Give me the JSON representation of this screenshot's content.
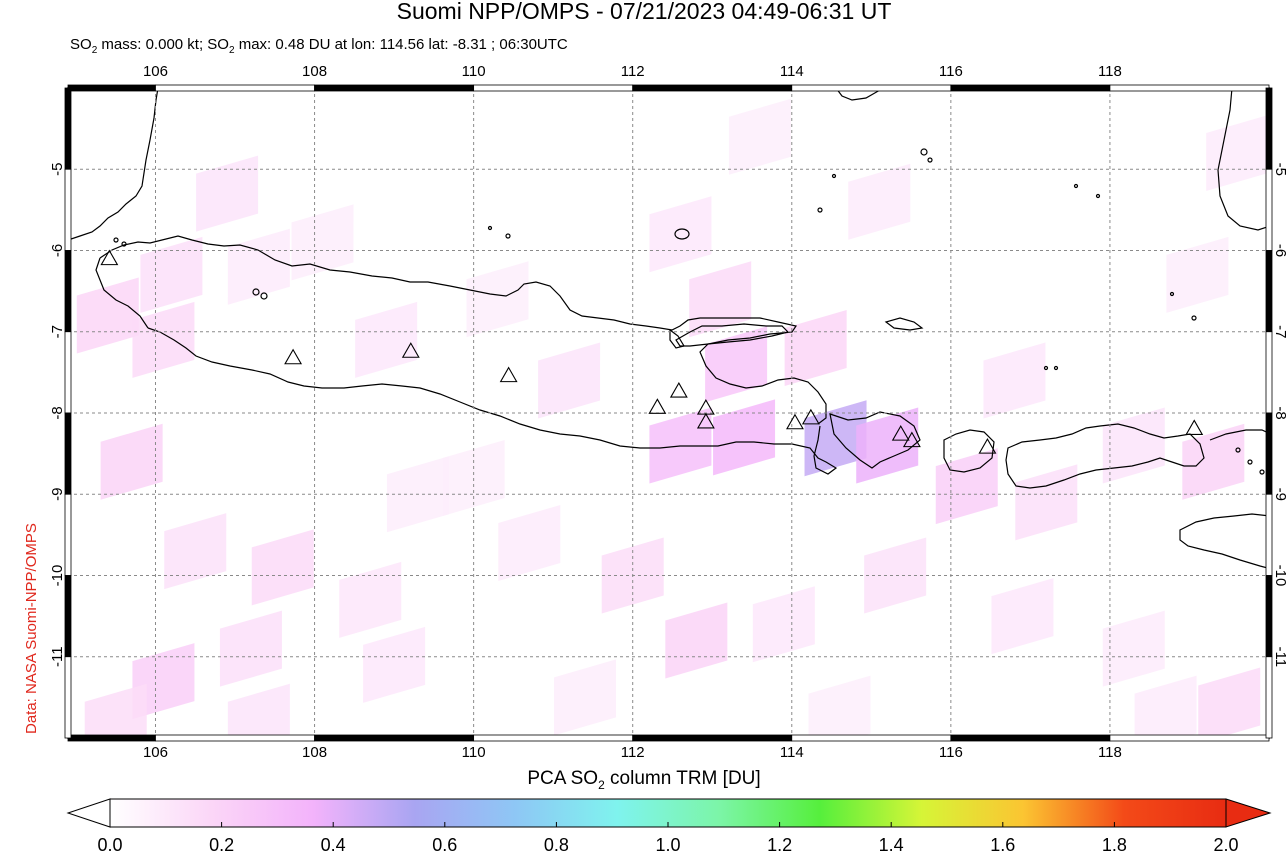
{
  "title": "Suomi NPP/OMPS - 07/21/2023 04:49-06:31 UT",
  "subtitle": {
    "part1": "SO",
    "sub1": "2",
    "part2": " mass: 0.000 kt; SO",
    "sub2": "2",
    "part3": " max: 0.48 DU at lon: 114.56 lat: -8.31 ; 06:30UTC"
  },
  "credit": "Data: NASA Suomi-NPP/OMPS",
  "map": {
    "lon_range": [
      104.9,
      120.0
    ],
    "lat_range": [
      -12.0,
      -4.0
    ],
    "lon_ticks": [
      106,
      108,
      110,
      112,
      114,
      116,
      118
    ],
    "lon_tick_labels": [
      "106",
      "108",
      "110",
      "112",
      "114",
      "116",
      "118"
    ],
    "lat_ticks": [
      -5,
      -6,
      -7,
      -8,
      -9,
      -10,
      -11
    ],
    "lat_tick_labels": [
      "-5",
      "-6",
      "-7",
      "-8",
      "-9",
      "-10",
      "-11"
    ],
    "gridlines": true,
    "volcano_marker": "triangle-icon",
    "volcanoes": [
      {
        "lon": 105.42,
        "lat": -6.1
      },
      {
        "lon": 107.73,
        "lat": -7.32
      },
      {
        "lon": 109.21,
        "lat": -7.24
      },
      {
        "lon": 110.44,
        "lat": -7.54
      },
      {
        "lon": 112.31,
        "lat": -7.93
      },
      {
        "lon": 112.58,
        "lat": -7.73
      },
      {
        "lon": 112.92,
        "lat": -7.94
      },
      {
        "lon": 112.92,
        "lat": -8.11
      },
      {
        "lon": 114.04,
        "lat": -8.12
      },
      {
        "lon": 114.24,
        "lat": -8.06
      },
      {
        "lon": 115.37,
        "lat": -8.26
      },
      {
        "lon": 115.51,
        "lat": -8.34
      },
      {
        "lon": 116.46,
        "lat": -8.42
      },
      {
        "lon": 119.06,
        "lat": -8.19
      }
    ],
    "so2_cells": [
      {
        "lon": 106.2,
        "lat": -6.3,
        "v": 0.14
      },
      {
        "lon": 107.3,
        "lat": -6.2,
        "v": 0.09
      },
      {
        "lon": 105.4,
        "lat": -6.8,
        "v": 0.18
      },
      {
        "lon": 106.1,
        "lat": -7.1,
        "v": 0.16
      },
      {
        "lon": 106.9,
        "lat": -5.3,
        "v": 0.12
      },
      {
        "lon": 108.1,
        "lat": -5.9,
        "v": 0.08
      },
      {
        "lon": 108.9,
        "lat": -7.1,
        "v": 0.1
      },
      {
        "lon": 110.3,
        "lat": -6.6,
        "v": 0.07
      },
      {
        "lon": 111.2,
        "lat": -7.6,
        "v": 0.12
      },
      {
        "lon": 112.6,
        "lat": -5.8,
        "v": 0.1
      },
      {
        "lon": 113.1,
        "lat": -6.6,
        "v": 0.16
      },
      {
        "lon": 113.3,
        "lat": -7.4,
        "v": 0.26
      },
      {
        "lon": 113.4,
        "lat": -8.3,
        "v": 0.34
      },
      {
        "lon": 112.6,
        "lat": -8.4,
        "v": 0.3
      },
      {
        "lon": 114.55,
        "lat": -8.31,
        "v": 0.48
      },
      {
        "lon": 115.2,
        "lat": -8.4,
        "v": 0.38
      },
      {
        "lon": 114.3,
        "lat": -7.2,
        "v": 0.18
      },
      {
        "lon": 115.1,
        "lat": -5.4,
        "v": 0.09
      },
      {
        "lon": 116.2,
        "lat": -8.9,
        "v": 0.22
      },
      {
        "lon": 117.2,
        "lat": -9.1,
        "v": 0.14
      },
      {
        "lon": 118.3,
        "lat": -8.4,
        "v": 0.12
      },
      {
        "lon": 119.3,
        "lat": -8.6,
        "v": 0.2
      },
      {
        "lon": 119.1,
        "lat": -6.3,
        "v": 0.08
      },
      {
        "lon": 105.7,
        "lat": -8.6,
        "v": 0.2
      },
      {
        "lon": 106.5,
        "lat": -9.7,
        "v": 0.13
      },
      {
        "lon": 107.6,
        "lat": -9.9,
        "v": 0.16
      },
      {
        "lon": 108.7,
        "lat": -10.3,
        "v": 0.11
      },
      {
        "lon": 107.2,
        "lat": -10.9,
        "v": 0.14
      },
      {
        "lon": 106.1,
        "lat": -11.3,
        "v": 0.22
      },
      {
        "lon": 105.5,
        "lat": -11.8,
        "v": 0.15
      },
      {
        "lon": 107.3,
        "lat": -11.8,
        "v": 0.12
      },
      {
        "lon": 109.0,
        "lat": -11.1,
        "v": 0.1
      },
      {
        "lon": 110.7,
        "lat": -9.6,
        "v": 0.09
      },
      {
        "lon": 112.0,
        "lat": -10.0,
        "v": 0.15
      },
      {
        "lon": 112.8,
        "lat": -10.8,
        "v": 0.2
      },
      {
        "lon": 113.9,
        "lat": -10.6,
        "v": 0.1
      },
      {
        "lon": 115.3,
        "lat": -10.0,
        "v": 0.13
      },
      {
        "lon": 116.9,
        "lat": -10.5,
        "v": 0.1
      },
      {
        "lon": 118.3,
        "lat": -10.9,
        "v": 0.09
      },
      {
        "lon": 119.5,
        "lat": -11.6,
        "v": 0.16
      },
      {
        "lon": 118.7,
        "lat": -11.7,
        "v": 0.09
      },
      {
        "lon": 110.0,
        "lat": -8.8,
        "v": 0.07
      },
      {
        "lon": 111.4,
        "lat": -11.5,
        "v": 0.08
      },
      {
        "lon": 109.3,
        "lat": -9.0,
        "v": 0.08
      },
      {
        "lon": 114.6,
        "lat": -11.7,
        "v": 0.07
      },
      {
        "lon": 116.8,
        "lat": -7.6,
        "v": 0.1
      },
      {
        "lon": 119.6,
        "lat": -4.8,
        "v": 0.09
      },
      {
        "lon": 113.6,
        "lat": -4.6,
        "v": 0.07
      }
    ]
  },
  "colorbar": {
    "title_part1": "PCA SO",
    "title_sub": "2",
    "title_part2": " column TRM [DU]",
    "min": 0.0,
    "max": 2.0,
    "ticks": [
      0.0,
      0.2,
      0.4,
      0.6,
      0.8,
      1.0,
      1.2,
      1.4,
      1.6,
      1.8,
      2.0
    ],
    "tick_labels": [
      "0.0",
      "0.2",
      "0.4",
      "0.6",
      "0.8",
      "1.0",
      "1.2",
      "1.4",
      "1.6",
      "1.8",
      "2.0"
    ],
    "colors": [
      "#ffffff",
      "#fbd6f7",
      "#f3b3fb",
      "#a9a5f2",
      "#8ec7f5",
      "#7ff3ee",
      "#7cf5a8",
      "#56ef3c",
      "#d6f537",
      "#fbc532",
      "#f34a18",
      "#e82c12"
    ]
  }
}
